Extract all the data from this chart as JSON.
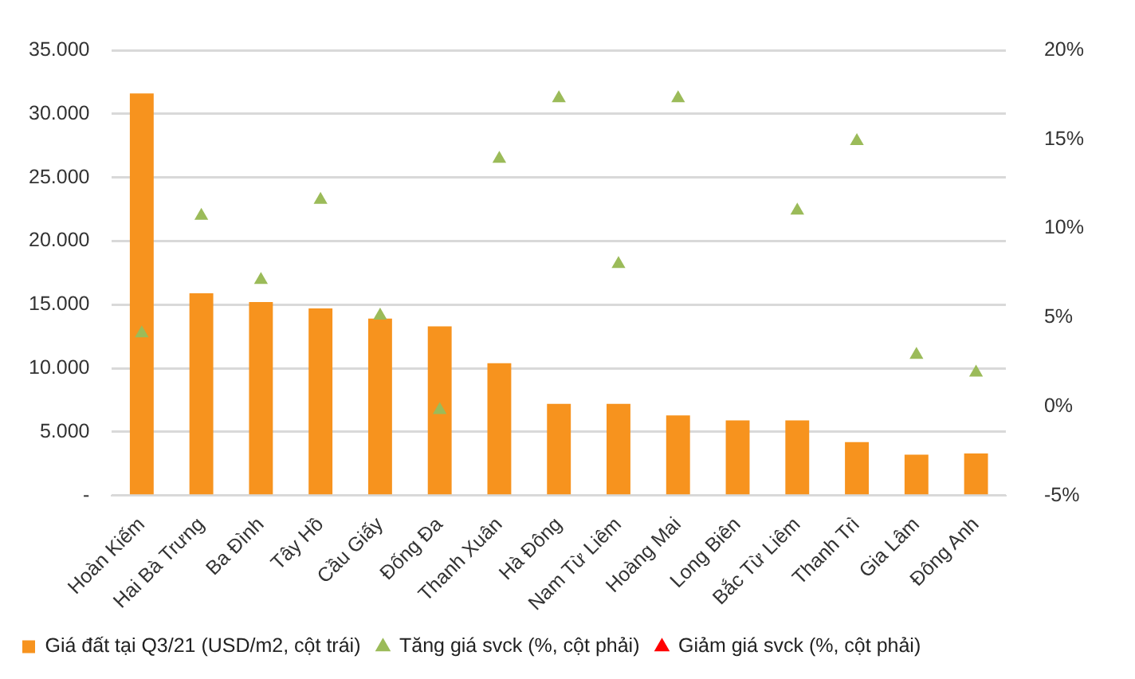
{
  "chart_data": {
    "type": "bar",
    "categories": [
      "Hoàn Kiếm",
      "Hai Bà Trưng",
      "Ba Đình",
      "Tây Hồ",
      "Cầu Giấy",
      "Đống Đa",
      "Thanh Xuân",
      "Hà Đông",
      "Nam Từ Liêm",
      "Hoàng Mai",
      "Long Biên",
      "Bắc Từ Liêm",
      "Thanh Trì",
      "Gia Lâm",
      "Đông Anh"
    ],
    "series": [
      {
        "name": "Giá đất tại Q3/21 (USD/m2, cột trái)",
        "color": "#f7931e",
        "values": [
          31600,
          15900,
          15200,
          14700,
          13900,
          13300,
          10400,
          7200,
          7200,
          6300,
          5900,
          5900,
          4200,
          3200,
          3300
        ]
      },
      {
        "name": "Tăng giá svck (%, cột phải)",
        "type": "scatter",
        "axis": "y2",
        "color": "#9bbb59",
        "values": [
          4.1,
          10.7,
          7.1,
          11.6,
          5.1,
          -0.2,
          13.9,
          17.3,
          8.0,
          17.3,
          null,
          11.0,
          14.9,
          2.9,
          1.9
        ]
      },
      {
        "name": "Giảm giá svck (%, cột phải)",
        "type": "scatter",
        "axis": "y2",
        "color": "#ff0000",
        "values": [
          null,
          null,
          null,
          null,
          null,
          null,
          null,
          null,
          null,
          null,
          null,
          null,
          null,
          null,
          null
        ]
      }
    ],
    "ylim": [
      0,
      35000
    ],
    "yticks": [
      {
        "value": 0,
        "label": "-"
      },
      {
        "value": 5000,
        "label": "5.000"
      },
      {
        "value": 10000,
        "label": "10.000"
      },
      {
        "value": 15000,
        "label": "15.000"
      },
      {
        "value": 20000,
        "label": "20.000"
      },
      {
        "value": 25000,
        "label": "25.000"
      },
      {
        "value": 30000,
        "label": "30.000"
      },
      {
        "value": 35000,
        "label": "35.000"
      }
    ],
    "y2lim": [
      -5,
      20
    ],
    "y2ticks": [
      {
        "value": -5,
        "label": "-5%"
      },
      {
        "value": 0,
        "label": "0%"
      },
      {
        "value": 5,
        "label": "5%"
      },
      {
        "value": 10,
        "label": "10%"
      },
      {
        "value": 15,
        "label": "15%"
      },
      {
        "value": 20,
        "label": "20%"
      }
    ],
    "grid": "y",
    "legend": "bottom",
    "marker": "triangle"
  }
}
